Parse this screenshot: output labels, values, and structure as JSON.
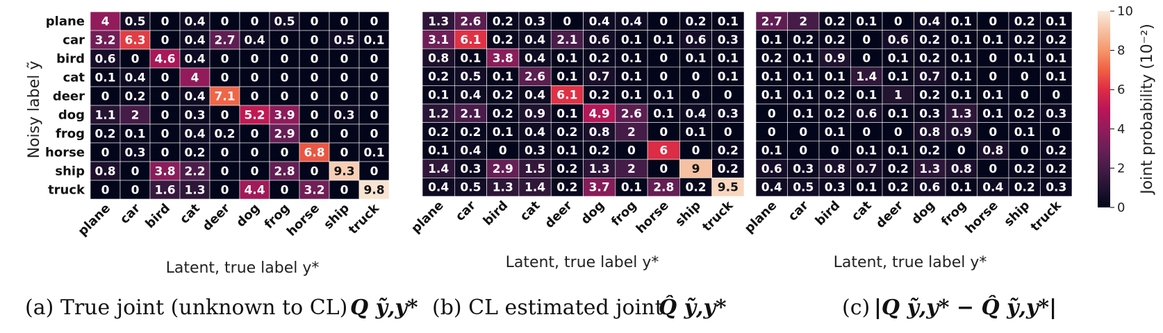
{
  "labels": [
    "plane",
    "car",
    "bird",
    "cat",
    "deer",
    "dog",
    "frog",
    "horse",
    "ship",
    "truck"
  ],
  "colorbar": {
    "label": "Joint probability (10⁻²)",
    "ticks": [
      0,
      2,
      4,
      6,
      8,
      10
    ],
    "min": 0,
    "max": 10
  },
  "chart_data": [
    {
      "type": "heatmap",
      "caption": "(a) True joint (unknown to CL)",
      "caption_math": "Q ỹ,y*",
      "xlabel": "Latent, true label y*",
      "ylabel": "Noisy label ỹ",
      "x_categories": [
        "plane",
        "car",
        "bird",
        "cat",
        "deer",
        "dog",
        "frog",
        "horse",
        "ship",
        "truck"
      ],
      "y_categories": [
        "plane",
        "car",
        "bird",
        "cat",
        "deer",
        "dog",
        "frog",
        "horse",
        "ship",
        "truck"
      ],
      "values": [
        [
          "4",
          "0.5",
          "0",
          "0.4",
          "0",
          "0",
          "0.5",
          "0",
          "0",
          "0"
        ],
        [
          "3.2",
          "6.3",
          "0",
          "0.4",
          "2.7",
          "0.4",
          "0",
          "0",
          "0.5",
          "0.1"
        ],
        [
          "0.6",
          "0",
          "4.6",
          "0.4",
          "0",
          "0",
          "0",
          "0",
          "0",
          "0"
        ],
        [
          "0.1",
          "0.4",
          "0",
          "4",
          "0",
          "0",
          "0",
          "0",
          "0",
          "0"
        ],
        [
          "0",
          "0.2",
          "0",
          "0.4",
          "7.1",
          "0",
          "0",
          "0",
          "0",
          "0"
        ],
        [
          "1.1",
          "2",
          "0",
          "0.3",
          "0",
          "5.2",
          "3.9",
          "0",
          "0.3",
          "0"
        ],
        [
          "0.2",
          "0.1",
          "0",
          "0.4",
          "0.2",
          "0",
          "2.9",
          "0",
          "0",
          "0"
        ],
        [
          "0",
          "0.3",
          "0",
          "0.2",
          "0",
          "0",
          "0",
          "6.8",
          "0",
          "0.1"
        ],
        [
          "0.8",
          "0",
          "3.8",
          "2.2",
          "0",
          "0",
          "2.8",
          "0",
          "9.3",
          "0"
        ],
        [
          "0",
          "0",
          "1.6",
          "1.3",
          "0",
          "4.4",
          "0",
          "3.2",
          "0",
          "9.8"
        ]
      ]
    },
    {
      "type": "heatmap",
      "caption": "(b) CL estimated joint",
      "caption_math": "Q̂ ỹ,y*",
      "xlabel": "Latent, true label y*",
      "ylabel": "",
      "x_categories": [
        "plane",
        "car",
        "bird",
        "cat",
        "deer",
        "dog",
        "frog",
        "horse",
        "ship",
        "truck"
      ],
      "y_categories": [],
      "values": [
        [
          "1.3",
          "2.6",
          "0.2",
          "0.3",
          "0",
          "0.4",
          "0.4",
          "0",
          "0.2",
          "0.1"
        ],
        [
          "3.1",
          "6.1",
          "0.2",
          "0.4",
          "2.1",
          "0.6",
          "0.1",
          "0.1",
          "0.6",
          "0.3"
        ],
        [
          "0.8",
          "0.1",
          "3.8",
          "0.4",
          "0.1",
          "0.2",
          "0.1",
          "0",
          "0.1",
          "0.1"
        ],
        [
          "0.2",
          "0.5",
          "0.1",
          "2.6",
          "0.1",
          "0.7",
          "0.1",
          "0",
          "0",
          "0.1"
        ],
        [
          "0.1",
          "0.4",
          "0.2",
          "0.4",
          "6.1",
          "0.2",
          "0.1",
          "0.1",
          "0",
          "0"
        ],
        [
          "1.2",
          "2.1",
          "0.2",
          "0.9",
          "0.1",
          "4.9",
          "2.6",
          "0.1",
          "0.4",
          "0.3"
        ],
        [
          "0.2",
          "0.2",
          "0.1",
          "0.4",
          "0.2",
          "0.8",
          "2",
          "0",
          "0.1",
          "0"
        ],
        [
          "0.1",
          "0.4",
          "0",
          "0.3",
          "0.1",
          "0.2",
          "0",
          "6",
          "0",
          "0.2"
        ],
        [
          "1.4",
          "0.3",
          "2.9",
          "1.5",
          "0.2",
          "1.3",
          "2",
          "0",
          "9",
          "0.2"
        ],
        [
          "0.4",
          "0.5",
          "1.3",
          "1.4",
          "0.2",
          "3.7",
          "0.1",
          "2.8",
          "0.2",
          "9.5"
        ]
      ]
    },
    {
      "type": "heatmap",
      "caption": "(c)",
      "caption_math": "|Q ỹ,y* − Q̂ ỹ,y*|",
      "xlabel": "Latent, true label y*",
      "ylabel": "",
      "x_categories": [
        "plane",
        "car",
        "bird",
        "cat",
        "deer",
        "dog",
        "frog",
        "horse",
        "ship",
        "truck"
      ],
      "y_categories": [],
      "values": [
        [
          "2.7",
          "2",
          "0.2",
          "0.1",
          "0",
          "0.4",
          "0.1",
          "0",
          "0.2",
          "0.1"
        ],
        [
          "0.1",
          "0.2",
          "0.2",
          "0",
          "0.6",
          "0.2",
          "0.1",
          "0.1",
          "0.2",
          "0.2"
        ],
        [
          "0.2",
          "0.1",
          "0.9",
          "0",
          "0.1",
          "0.2",
          "0.1",
          "0",
          "0.1",
          "0.1"
        ],
        [
          "0.1",
          "0.1",
          "0.1",
          "1.4",
          "0.1",
          "0.7",
          "0.1",
          "0",
          "0",
          "0.1"
        ],
        [
          "0.1",
          "0.1",
          "0.2",
          "0.1",
          "1",
          "0.2",
          "0.1",
          "0.1",
          "0",
          "0"
        ],
        [
          "0",
          "0.1",
          "0.2",
          "0.6",
          "0.1",
          "0.3",
          "1.3",
          "0.1",
          "0.2",
          "0.3"
        ],
        [
          "0",
          "0",
          "0.1",
          "0",
          "0",
          "0.8",
          "0.9",
          "0",
          "0.1",
          "0"
        ],
        [
          "0.1",
          "0",
          "0",
          "0.1",
          "0.1",
          "0.2",
          "0",
          "0.8",
          "0",
          "0.2"
        ],
        [
          "0.6",
          "0.3",
          "0.8",
          "0.7",
          "0.2",
          "1.3",
          "0.8",
          "0",
          "0.2",
          "0.2"
        ],
        [
          "0.4",
          "0.5",
          "0.3",
          "0.1",
          "0.2",
          "0.6",
          "0.1",
          "0.4",
          "0.2",
          "0.3"
        ]
      ]
    }
  ]
}
